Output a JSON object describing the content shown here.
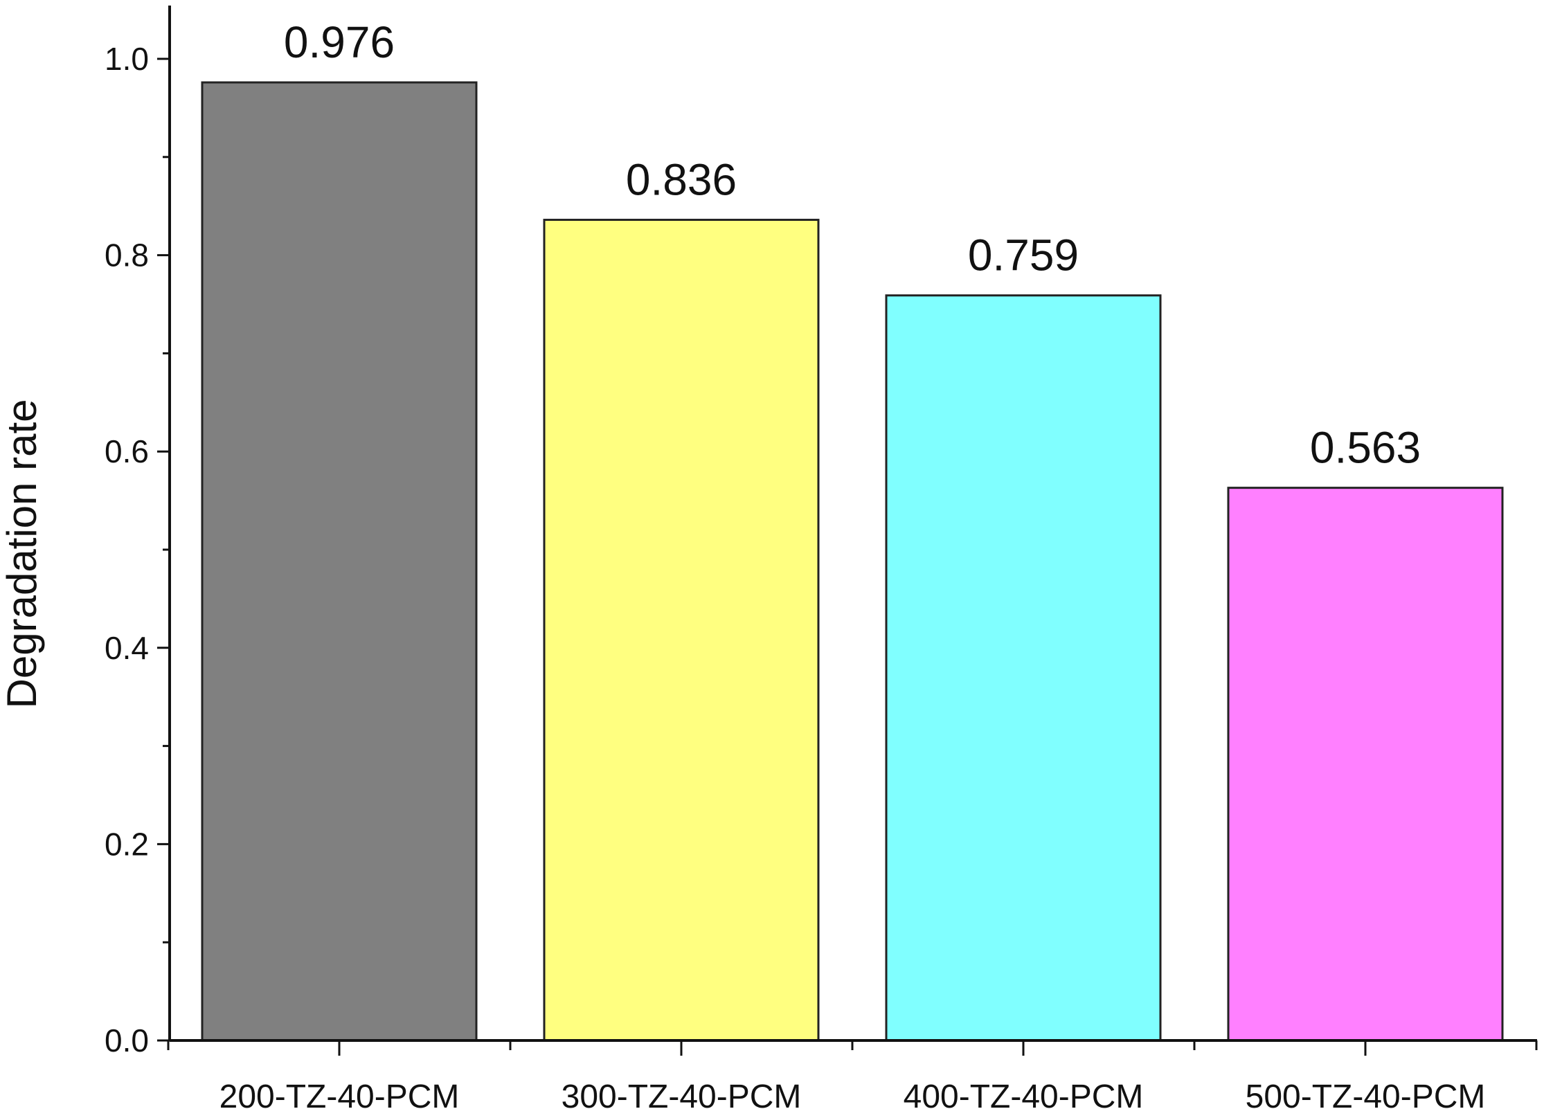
{
  "chart_data": {
    "type": "bar",
    "title": "",
    "xlabel": "",
    "ylabel": "Degradation rate",
    "categories": [
      "200-TZ-40-PCM",
      "300-TZ-40-PCM",
      "400-TZ-40-PCM",
      "500-TZ-40-PCM"
    ],
    "values": [
      0.976,
      0.836,
      0.759,
      0.563
    ],
    "value_labels": [
      "0.976",
      "0.836",
      "0.759",
      "0.563"
    ],
    "colors": [
      "#808080",
      "#ffff80",
      "#80ffff",
      "#ff80ff"
    ],
    "ylim": [
      0,
      1.0
    ],
    "yticks": [
      0.0,
      0.2,
      0.4,
      0.6,
      0.8,
      1.0
    ],
    "ytick_labels": [
      "0.0",
      "0.2",
      "0.4",
      "0.6",
      "0.8",
      "1.0"
    ],
    "y_minor_step": 0.1,
    "grid": false,
    "legend": "none"
  }
}
